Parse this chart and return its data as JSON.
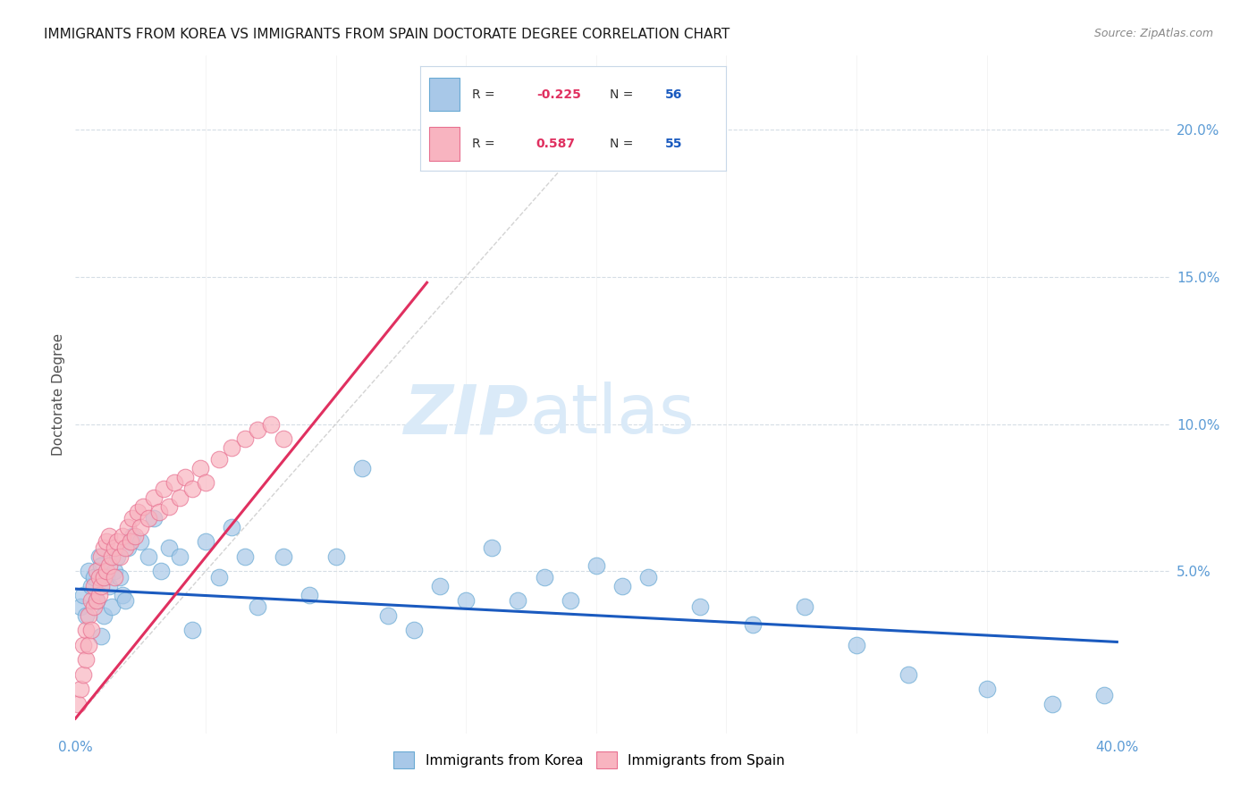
{
  "title": "IMMIGRANTS FROM KOREA VS IMMIGRANTS FROM SPAIN DOCTORATE DEGREE CORRELATION CHART",
  "source": "Source: ZipAtlas.com",
  "ylabel": "Doctorate Degree",
  "xlim": [
    0.0,
    0.42
  ],
  "ylim": [
    -0.005,
    0.225
  ],
  "ytick_vals": [
    0.0,
    0.05,
    0.1,
    0.15,
    0.2
  ],
  "xtick_vals": [
    0.0,
    0.05,
    0.1,
    0.15,
    0.2,
    0.25,
    0.3,
    0.35,
    0.4
  ],
  "korea_color": "#a8c8e8",
  "spain_color": "#f8b4c0",
  "korea_edge": "#6aaad4",
  "spain_edge": "#e87090",
  "korea_line_color": "#1a5abf",
  "spain_line_color": "#e03060",
  "diagonal_color": "#c8c8c8",
  "R_korea": -0.225,
  "N_korea": 56,
  "R_spain": 0.587,
  "N_spain": 55,
  "title_fontsize": 11,
  "source_fontsize": 9,
  "tick_color": "#5b9bd5",
  "ylabel_color": "#505050",
  "watermark_zip": "ZIP",
  "watermark_atlas": "atlas",
  "watermark_color": "#daeaf8",
  "korea_x": [
    0.002,
    0.003,
    0.004,
    0.005,
    0.006,
    0.007,
    0.008,
    0.009,
    0.01,
    0.011,
    0.012,
    0.013,
    0.014,
    0.015,
    0.016,
    0.017,
    0.018,
    0.019,
    0.02,
    0.022,
    0.025,
    0.028,
    0.03,
    0.033,
    0.036,
    0.04,
    0.045,
    0.05,
    0.055,
    0.06,
    0.065,
    0.07,
    0.08,
    0.09,
    0.1,
    0.11,
    0.12,
    0.13,
    0.14,
    0.15,
    0.16,
    0.17,
    0.18,
    0.19,
    0.2,
    0.21,
    0.22,
    0.24,
    0.26,
    0.28,
    0.3,
    0.32,
    0.35,
    0.375,
    0.395,
    0.01
  ],
  "korea_y": [
    0.038,
    0.042,
    0.035,
    0.05,
    0.045,
    0.048,
    0.04,
    0.055,
    0.052,
    0.035,
    0.048,
    0.045,
    0.038,
    0.05,
    0.055,
    0.048,
    0.042,
    0.04,
    0.058,
    0.062,
    0.06,
    0.055,
    0.068,
    0.05,
    0.058,
    0.055,
    0.03,
    0.06,
    0.048,
    0.065,
    0.055,
    0.038,
    0.055,
    0.042,
    0.055,
    0.085,
    0.035,
    0.03,
    0.045,
    0.04,
    0.058,
    0.04,
    0.048,
    0.04,
    0.052,
    0.045,
    0.048,
    0.038,
    0.032,
    0.038,
    0.025,
    0.015,
    0.01,
    0.005,
    0.008,
    0.028
  ],
  "spain_x": [
    0.001,
    0.002,
    0.003,
    0.003,
    0.004,
    0.004,
    0.005,
    0.005,
    0.006,
    0.006,
    0.007,
    0.007,
    0.008,
    0.008,
    0.009,
    0.009,
    0.01,
    0.01,
    0.011,
    0.011,
    0.012,
    0.012,
    0.013,
    0.013,
    0.014,
    0.015,
    0.015,
    0.016,
    0.017,
    0.018,
    0.019,
    0.02,
    0.021,
    0.022,
    0.023,
    0.024,
    0.025,
    0.026,
    0.028,
    0.03,
    0.032,
    0.034,
    0.036,
    0.038,
    0.04,
    0.042,
    0.045,
    0.048,
    0.05,
    0.055,
    0.06,
    0.065,
    0.07,
    0.075,
    0.08
  ],
  "spain_y": [
    0.005,
    0.01,
    0.015,
    0.025,
    0.02,
    0.03,
    0.025,
    0.035,
    0.03,
    0.04,
    0.038,
    0.045,
    0.04,
    0.05,
    0.042,
    0.048,
    0.045,
    0.055,
    0.048,
    0.058,
    0.05,
    0.06,
    0.052,
    0.062,
    0.055,
    0.048,
    0.058,
    0.06,
    0.055,
    0.062,
    0.058,
    0.065,
    0.06,
    0.068,
    0.062,
    0.07,
    0.065,
    0.072,
    0.068,
    0.075,
    0.07,
    0.078,
    0.072,
    0.08,
    0.075,
    0.082,
    0.078,
    0.085,
    0.08,
    0.088,
    0.092,
    0.095,
    0.098,
    0.1,
    0.095
  ],
  "spain_line_x": [
    0.0,
    0.135
  ],
  "korea_line_x": [
    0.0,
    0.4
  ],
  "korea_line_y": [
    0.044,
    0.026
  ],
  "spain_line_y": [
    0.0,
    0.148
  ]
}
